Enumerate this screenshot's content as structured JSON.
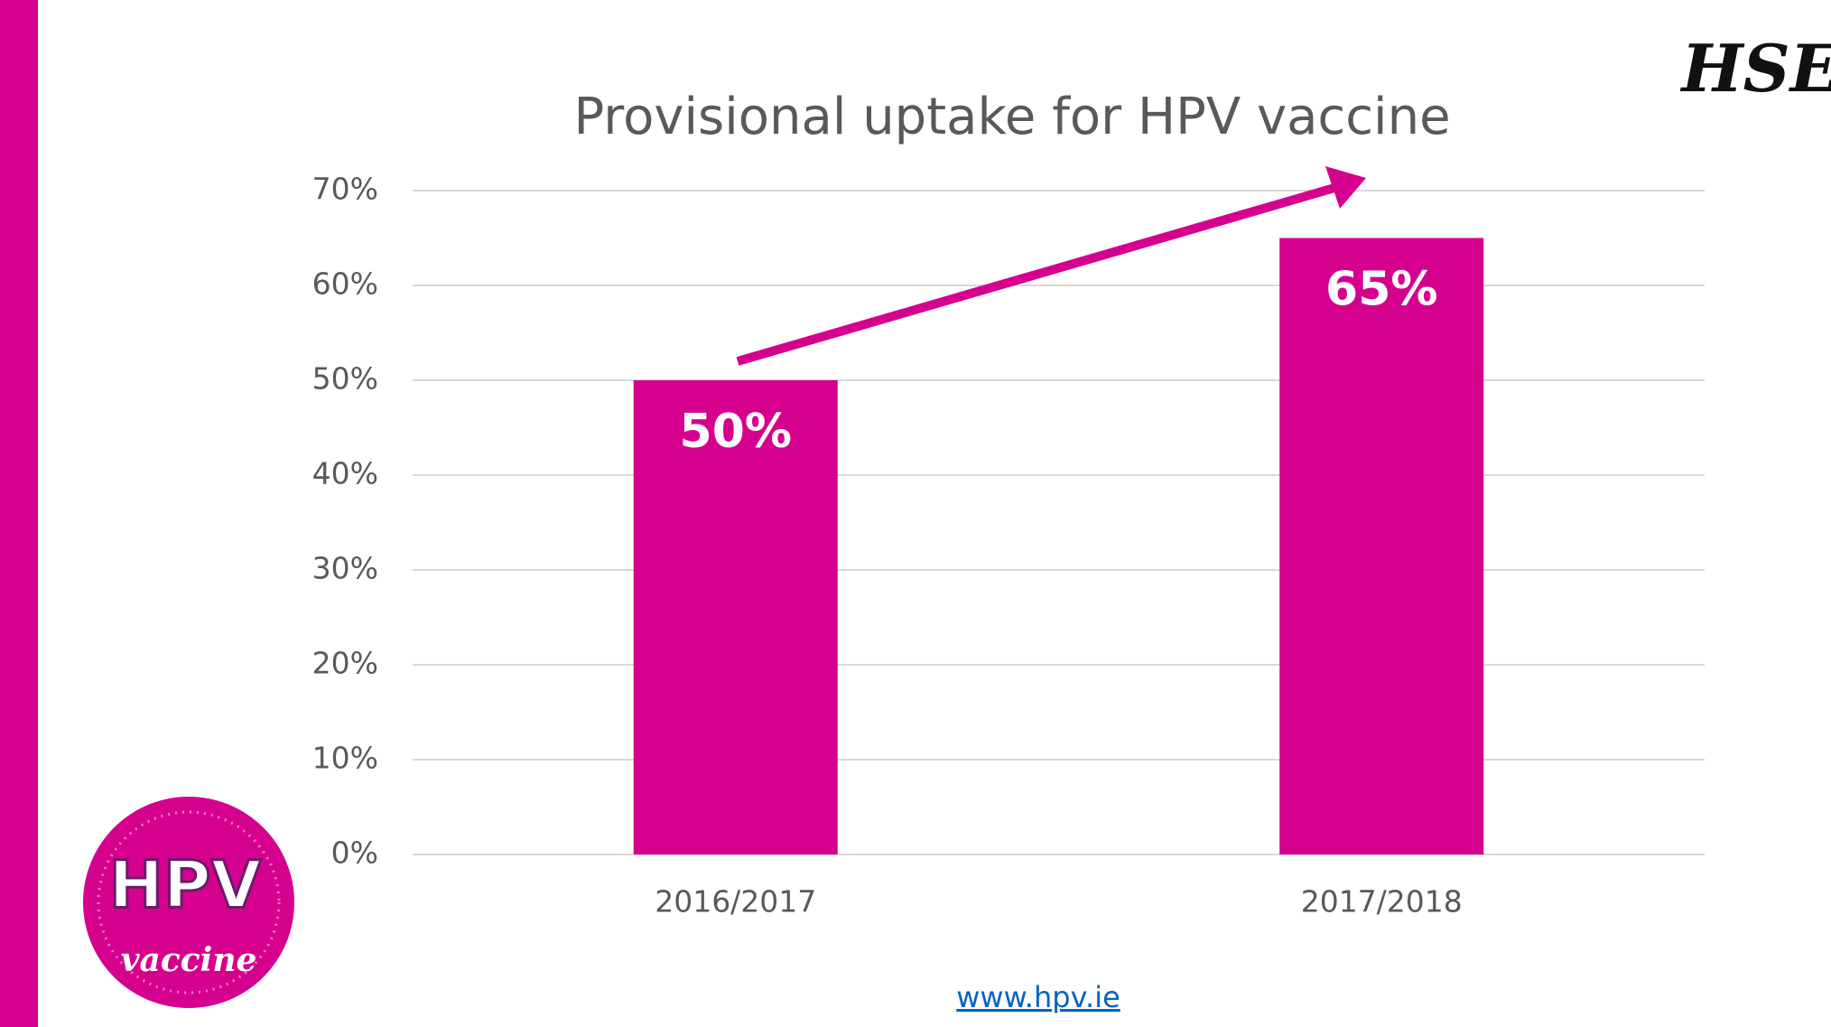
{
  "chart_data": {
    "type": "bar",
    "title": "Provisional uptake for HPV vaccine",
    "categories": [
      "2016/2017",
      "2017/2018"
    ],
    "values": [
      50,
      65
    ],
    "value_labels": [
      "50%",
      "65%"
    ],
    "color": "#d6008f",
    "ylim": [
      0,
      70
    ],
    "yticks": [
      {
        "value": 0,
        "label": "0%"
      },
      {
        "value": 10,
        "label": "10%"
      },
      {
        "value": 20,
        "label": "20%"
      },
      {
        "value": 30,
        "label": "30%"
      },
      {
        "value": 40,
        "label": "40%"
      },
      {
        "value": 50,
        "label": "50%"
      },
      {
        "value": 60,
        "label": "60%"
      },
      {
        "value": 70,
        "label": "70%"
      }
    ],
    "grid": true
  },
  "footer": {
    "link": "www.hpv.ie"
  },
  "logo": "HSE",
  "badge": {
    "top": "HPV",
    "bottom": "vaccine"
  }
}
